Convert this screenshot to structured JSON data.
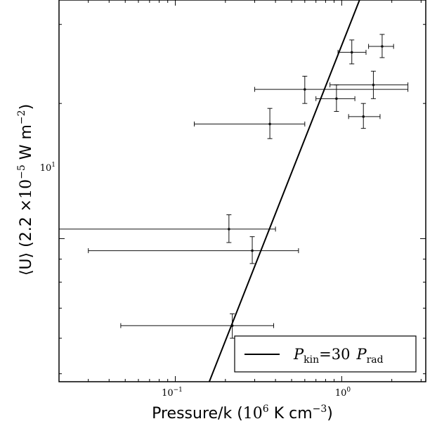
{
  "chart_data": {
    "type": "scatter",
    "xscale": "log",
    "yscale": "log",
    "xlim": [
      0.02,
      3.2
    ],
    "ylim": [
      4.8,
      34
    ],
    "x_ticks": [
      {
        "value": 0.1,
        "base": "10",
        "exp": "−1"
      },
      {
        "value": 1,
        "base": "10",
        "exp": "0"
      }
    ],
    "y_ticks": [
      {
        "value": 10,
        "base": "10",
        "exp": "1"
      }
    ],
    "xlabel": {
      "prefix": "Pressure/k (",
      "base": "10",
      "exp": "6",
      "mid": " K cm",
      "exp2": "−3",
      "suffix": ")"
    },
    "ylabel": {
      "open": "⟨",
      "var": "U",
      "close": "⟩",
      "prefix": " (2.2 ×",
      "base": "10",
      "exp": "−5",
      "mid": " W m",
      "exp2": "−2",
      "suffix": ")"
    },
    "grid": false,
    "legend_position": "bottom-right",
    "series": [
      {
        "type": "errorbar",
        "points": [
          {
            "x": 1.15,
            "x_lo": 0.95,
            "x_hi": 1.4,
            "y": 26.0,
            "y_lo": 24.5,
            "y_hi": 27.7
          },
          {
            "x": 1.75,
            "x_lo": 1.45,
            "x_hi": 2.05,
            "y": 26.8,
            "y_lo": 25.3,
            "y_hi": 28.5
          },
          {
            "x": 0.6,
            "x_lo": 0.3,
            "x_hi": 2.5,
            "y": 21.5,
            "y_lo": 20.0,
            "y_hi": 23.0
          },
          {
            "x": 1.55,
            "x_lo": 0.85,
            "x_hi": 2.5,
            "y": 22.0,
            "y_lo": 20.5,
            "y_hi": 23.6
          },
          {
            "x": 0.93,
            "x_lo": 0.7,
            "x_hi": 1.2,
            "y": 20.5,
            "y_lo": 19.2,
            "y_hi": 22.0
          },
          {
            "x": 1.35,
            "x_lo": 1.1,
            "x_hi": 1.7,
            "y": 18.7,
            "y_lo": 17.6,
            "y_hi": 20.0
          },
          {
            "x": 0.37,
            "x_lo": 0.13,
            "x_hi": 0.6,
            "y": 18.0,
            "y_lo": 16.7,
            "y_hi": 19.5
          },
          {
            "x": 0.21,
            "x_lo": 0.02,
            "x_hi": 0.4,
            "y": 10.5,
            "y_lo": 9.8,
            "y_hi": 11.3
          },
          {
            "x": 0.29,
            "x_lo": 0.03,
            "x_hi": 0.55,
            "y": 9.4,
            "y_lo": 8.8,
            "y_hi": 10.1
          },
          {
            "x": 0.22,
            "x_lo": 0.047,
            "x_hi": 0.39,
            "y": 6.4,
            "y_lo": 6.0,
            "y_hi": 6.8
          }
        ]
      },
      {
        "type": "line",
        "name_base": "P",
        "name_sub1": "kin",
        "name_mid": "=30",
        "name_sub2": "rad",
        "points": [
          {
            "x": 0.16,
            "y": 4.8
          },
          {
            "x": 1.28,
            "y": 34
          }
        ]
      }
    ]
  }
}
